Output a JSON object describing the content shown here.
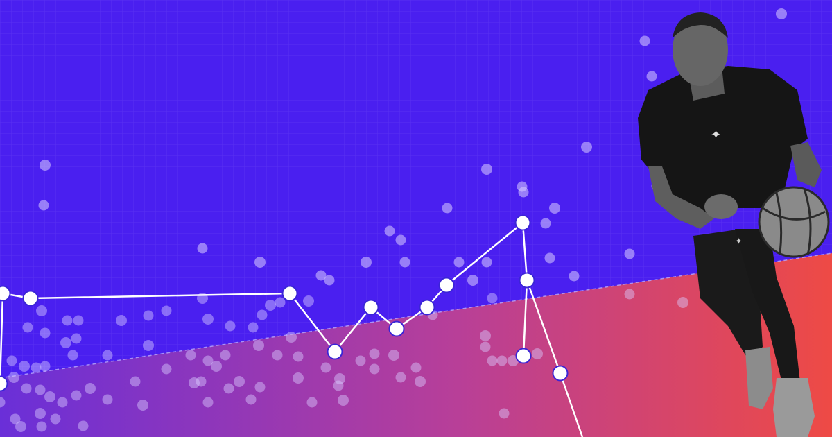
{
  "colors": {
    "background": "#4a1ff0",
    "grid": "#6a4af5",
    "gradient_start": "#6a2fd8",
    "gradient_mid": "#b83f98",
    "gradient_end": "#ee4a45",
    "dot": "#ffffff",
    "dot_faded": "#d9ccff",
    "line": "#ffffff",
    "node_stroke": "#3b25d6",
    "jersey": "#151515",
    "skin": "#6b6b6b",
    "ball": "#8a8a8a"
  },
  "subject": {
    "description": "basketball-player-dribbling-grayscale",
    "logo": "jumpman-logo-icon"
  }
}
